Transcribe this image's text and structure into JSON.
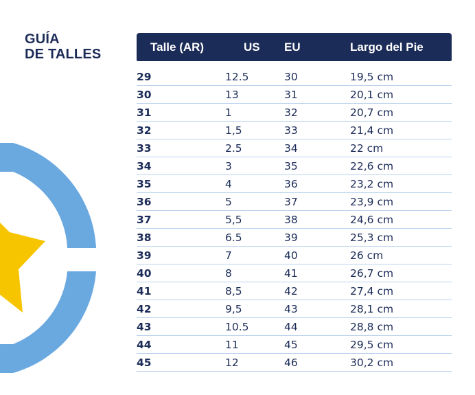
{
  "title": {
    "line1": "GUÍA",
    "line2": "DE TALLES"
  },
  "colors": {
    "navy": "#1c2c58",
    "ring_blue": "#6aa8e0",
    "star_yellow": "#f7c500",
    "row_divider": "#b9d2ec"
  },
  "decor": {
    "ring": "argentina-sun-ring-icon",
    "star": "star-icon"
  },
  "table": {
    "headers": [
      "Talle (AR)",
      "US",
      "EU",
      "Largo del Pie"
    ],
    "rows": [
      {
        "talle": "29",
        "us": "12.5",
        "eu": "30",
        "largo": "19,5 cm"
      },
      {
        "talle": "30",
        "us": "13",
        "eu": "31",
        "largo": "20,1 cm"
      },
      {
        "talle": "31",
        "us": "1",
        "eu": "32",
        "largo": "20,7 cm"
      },
      {
        "talle": "32",
        "us": "1,5",
        "eu": "33",
        "largo": "21,4 cm"
      },
      {
        "talle": "33",
        "us": "2.5",
        "eu": "34",
        "largo": "22  cm"
      },
      {
        "talle": "34",
        "us": "3",
        "eu": "35",
        "largo": "22,6  cm"
      },
      {
        "talle": "35",
        "us": "4",
        "eu": "36",
        "largo": "23,2  cm"
      },
      {
        "talle": "36",
        "us": "5",
        "eu": "37",
        "largo": "23,9  cm"
      },
      {
        "talle": "37",
        "us": "5,5",
        "eu": "38",
        "largo": "24,6  cm"
      },
      {
        "talle": "38",
        "us": "6.5",
        "eu": "39",
        "largo": "25,3  cm"
      },
      {
        "talle": "39",
        "us": "7",
        "eu": "40",
        "largo": "26  cm"
      },
      {
        "talle": "40",
        "us": "8",
        "eu": "41",
        "largo": "26,7  cm"
      },
      {
        "talle": "41",
        "us": "8,5",
        "eu": "42",
        "largo": "27,4  cm"
      },
      {
        "talle": "42",
        "us": "9,5",
        "eu": "43",
        "largo": "28,1  cm"
      },
      {
        "talle": "43",
        "us": "10.5",
        "eu": "44",
        "largo": "28,8  cm"
      },
      {
        "talle": "44",
        "us": "11",
        "eu": "45",
        "largo": "29,5  cm"
      },
      {
        "talle": "45",
        "us": "12",
        "eu": "46",
        "largo": "30,2  cm"
      }
    ]
  }
}
